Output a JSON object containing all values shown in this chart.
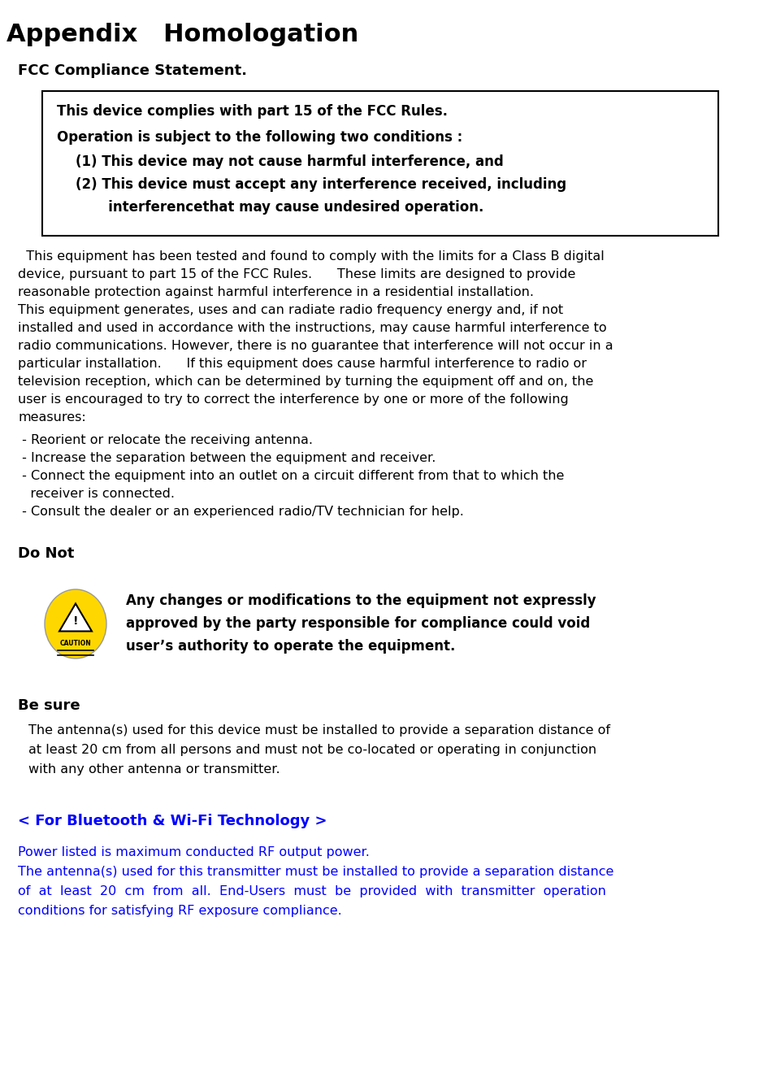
{
  "title": "Appendix   Homologation",
  "bg_color": "#ffffff",
  "text_color": "#000000",
  "blue_color": "#0000FF",
  "section1_label": "FCC Compliance Statement.",
  "box_lines": [
    "This device complies with part 15 of the FCC Rules.",
    "Operation is subject to the following two conditions :",
    "    (1) This device may not cause harmful interference, and",
    "    (2) This device must accept any interference received, including",
    "           interferencethat may cause undesired operation."
  ],
  "body_lines": [
    "  This equipment has been tested and found to comply with the limits for a Class B digital",
    "device, pursuant to part 15 of the FCC Rules.      These limits are designed to provide",
    "reasonable protection against harmful interference in a residential installation.",
    "This equipment generates, uses and can radiate radio frequency energy and, if not",
    "installed and used in accordance with the instructions, may cause harmful interference to",
    "radio communications. However, there is no guarantee that interference will not occur in a",
    "particular installation.      If this equipment does cause harmful interference to radio or",
    "television reception, which can be determined by turning the equipment off and on, the",
    "user is encouraged to try to correct the interference by one or more of the following",
    "measures:"
  ],
  "bullet_lines": [
    " - Reorient or relocate the receiving antenna.",
    " - Increase the separation between the equipment and receiver.",
    " - Connect the equipment into an outlet on a circuit different from that to which the",
    "   receiver is connected.",
    " - Consult the dealer or an experienced radio/TV technician for help."
  ],
  "do_not_label": "Do Not",
  "do_not_text_lines": [
    "Any changes or modifications to the equipment not expressly",
    "approved by the party responsible for compliance could void",
    "user’s authority to operate the equipment."
  ],
  "be_sure_label": "Be sure",
  "be_sure_lines": [
    "The antenna(s) used for this device must be installed to provide a separation distance of",
    "at least 20 cm from all persons and must not be co-located or operating in conjunction",
    "with any other antenna or transmitter."
  ],
  "bluetooth_label": "< For Bluetooth & Wi-Fi Technology >",
  "blue_text1": "Power listed is maximum conducted RF output power.",
  "blue_text2_lines": [
    "The antenna(s) used for this transmitter must be installed to provide a separation distance",
    "of  at  least  20  cm  from  all.  End-Users  must  be  provided  with  transmitter  operation",
    "conditions for satisfying RF exposure compliance."
  ]
}
